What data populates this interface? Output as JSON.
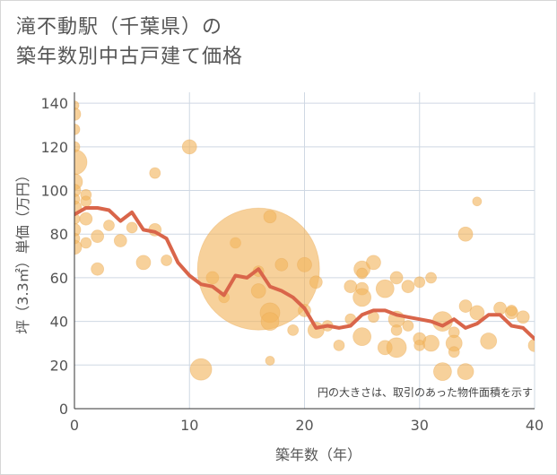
{
  "title_line1": "滝不動駅（千葉県）の",
  "title_line2": "築年数別中古戸建て価格",
  "chart_data": {
    "type": "scatter",
    "xlabel": "築年数（年）",
    "ylabel": "坪（3.3㎡）単価（万円）",
    "xlim": [
      0,
      40
    ],
    "ylim": [
      0,
      145
    ],
    "xticks": [
      0,
      10,
      20,
      30,
      40
    ],
    "yticks": [
      0,
      20,
      40,
      60,
      80,
      100,
      120,
      140
    ],
    "grid": true,
    "annotation": "円の大きさは、取引のあった物件面積を示す",
    "colors": {
      "bubble": "#f2b55e",
      "line": "#d9654a",
      "grid": "#cfd8e3"
    },
    "bubbles": [
      {
        "x": 0,
        "y": 139,
        "s": 5
      },
      {
        "x": 0,
        "y": 135,
        "s": 7
      },
      {
        "x": 0,
        "y": 128,
        "s": 6
      },
      {
        "x": 0,
        "y": 120,
        "s": 6
      },
      {
        "x": 0,
        "y": 113,
        "s": 14
      },
      {
        "x": 0,
        "y": 104,
        "s": 9
      },
      {
        "x": 0,
        "y": 100,
        "s": 7
      },
      {
        "x": 0,
        "y": 96,
        "s": 6
      },
      {
        "x": 0,
        "y": 92,
        "s": 8
      },
      {
        "x": 0,
        "y": 87,
        "s": 6
      },
      {
        "x": 0,
        "y": 82,
        "s": 7
      },
      {
        "x": 0,
        "y": 78,
        "s": 6
      },
      {
        "x": 0,
        "y": 74,
        "s": 8
      },
      {
        "x": 1,
        "y": 98,
        "s": 6
      },
      {
        "x": 1,
        "y": 95,
        "s": 6
      },
      {
        "x": 1,
        "y": 87,
        "s": 7
      },
      {
        "x": 1,
        "y": 76,
        "s": 6
      },
      {
        "x": 2,
        "y": 79,
        "s": 7
      },
      {
        "x": 2,
        "y": 64,
        "s": 7
      },
      {
        "x": 3,
        "y": 84,
        "s": 6
      },
      {
        "x": 4,
        "y": 77,
        "s": 7
      },
      {
        "x": 5,
        "y": 83,
        "s": 6
      },
      {
        "x": 6,
        "y": 67,
        "s": 8
      },
      {
        "x": 7,
        "y": 108,
        "s": 6
      },
      {
        "x": 7,
        "y": 82,
        "s": 7
      },
      {
        "x": 8,
        "y": 68,
        "s": 6
      },
      {
        "x": 10,
        "y": 120,
        "s": 8
      },
      {
        "x": 11,
        "y": 18,
        "s": 12
      },
      {
        "x": 12,
        "y": 60,
        "s": 7
      },
      {
        "x": 13,
        "y": 51,
        "s": 6
      },
      {
        "x": 14,
        "y": 76,
        "s": 6
      },
      {
        "x": 16,
        "y": 64,
        "s": 68
      },
      {
        "x": 16,
        "y": 63,
        "s": 6
      },
      {
        "x": 16,
        "y": 54,
        "s": 8
      },
      {
        "x": 17,
        "y": 88,
        "s": 7
      },
      {
        "x": 17,
        "y": 44,
        "s": 11
      },
      {
        "x": 17,
        "y": 40,
        "s": 10
      },
      {
        "x": 17,
        "y": 22,
        "s": 5
      },
      {
        "x": 18,
        "y": 66,
        "s": 7
      },
      {
        "x": 19,
        "y": 36,
        "s": 6
      },
      {
        "x": 20,
        "y": 66,
        "s": 8
      },
      {
        "x": 20,
        "y": 45,
        "s": 7
      },
      {
        "x": 21,
        "y": 58,
        "s": 7
      },
      {
        "x": 21,
        "y": 36,
        "s": 9
      },
      {
        "x": 22,
        "y": 38,
        "s": 6
      },
      {
        "x": 23,
        "y": 29,
        "s": 6
      },
      {
        "x": 24,
        "y": 56,
        "s": 7
      },
      {
        "x": 24,
        "y": 41,
        "s": 6
      },
      {
        "x": 25,
        "y": 64,
        "s": 9
      },
      {
        "x": 25,
        "y": 62,
        "s": 6
      },
      {
        "x": 25,
        "y": 55,
        "s": 7
      },
      {
        "x": 25,
        "y": 51,
        "s": 10
      },
      {
        "x": 25,
        "y": 33,
        "s": 10
      },
      {
        "x": 26,
        "y": 67,
        "s": 8
      },
      {
        "x": 26,
        "y": 42,
        "s": 6
      },
      {
        "x": 27,
        "y": 55,
        "s": 10
      },
      {
        "x": 27,
        "y": 28,
        "s": 8
      },
      {
        "x": 28,
        "y": 60,
        "s": 7
      },
      {
        "x": 28,
        "y": 41,
        "s": 9
      },
      {
        "x": 28,
        "y": 36,
        "s": 6
      },
      {
        "x": 28,
        "y": 28,
        "s": 11
      },
      {
        "x": 29,
        "y": 56,
        "s": 7
      },
      {
        "x": 29,
        "y": 38,
        "s": 6
      },
      {
        "x": 30,
        "y": 58,
        "s": 6
      },
      {
        "x": 30,
        "y": 32,
        "s": 7
      },
      {
        "x": 30,
        "y": 29,
        "s": 6
      },
      {
        "x": 31,
        "y": 60,
        "s": 6
      },
      {
        "x": 31,
        "y": 30,
        "s": 9
      },
      {
        "x": 32,
        "y": 40,
        "s": 11
      },
      {
        "x": 32,
        "y": 17,
        "s": 10
      },
      {
        "x": 33,
        "y": 35,
        "s": 6
      },
      {
        "x": 33,
        "y": 30,
        "s": 9
      },
      {
        "x": 33,
        "y": 26,
        "s": 6
      },
      {
        "x": 34,
        "y": 80,
        "s": 8
      },
      {
        "x": 34,
        "y": 47,
        "s": 7
      },
      {
        "x": 34,
        "y": 17,
        "s": 9
      },
      {
        "x": 35,
        "y": 95,
        "s": 5
      },
      {
        "x": 35,
        "y": 44,
        "s": 8
      },
      {
        "x": 36,
        "y": 31,
        "s": 9
      },
      {
        "x": 37,
        "y": 46,
        "s": 7
      },
      {
        "x": 38,
        "y": 44,
        "s": 7
      },
      {
        "x": 38,
        "y": 45,
        "s": 6
      },
      {
        "x": 39,
        "y": 42,
        "s": 7
      },
      {
        "x": 40,
        "y": 29,
        "s": 7
      }
    ],
    "trend": [
      {
        "x": 0,
        "y": 89
      },
      {
        "x": 1,
        "y": 92
      },
      {
        "x": 2,
        "y": 92
      },
      {
        "x": 3,
        "y": 91
      },
      {
        "x": 4,
        "y": 86
      },
      {
        "x": 5,
        "y": 90
      },
      {
        "x": 6,
        "y": 82
      },
      {
        "x": 7,
        "y": 81
      },
      {
        "x": 8,
        "y": 78
      },
      {
        "x": 9,
        "y": 67
      },
      {
        "x": 10,
        "y": 61
      },
      {
        "x": 11,
        "y": 57
      },
      {
        "x": 12,
        "y": 56
      },
      {
        "x": 13,
        "y": 52
      },
      {
        "x": 14,
        "y": 61
      },
      {
        "x": 15,
        "y": 60
      },
      {
        "x": 16,
        "y": 64
      },
      {
        "x": 17,
        "y": 56
      },
      {
        "x": 18,
        "y": 54
      },
      {
        "x": 19,
        "y": 51
      },
      {
        "x": 20,
        "y": 46
      },
      {
        "x": 21,
        "y": 37
      },
      {
        "x": 22,
        "y": 38
      },
      {
        "x": 23,
        "y": 37
      },
      {
        "x": 24,
        "y": 38
      },
      {
        "x": 25,
        "y": 43
      },
      {
        "x": 26,
        "y": 45
      },
      {
        "x": 27,
        "y": 45
      },
      {
        "x": 28,
        "y": 43
      },
      {
        "x": 29,
        "y": 42
      },
      {
        "x": 30,
        "y": 41
      },
      {
        "x": 31,
        "y": 40
      },
      {
        "x": 32,
        "y": 38
      },
      {
        "x": 33,
        "y": 41
      },
      {
        "x": 34,
        "y": 37
      },
      {
        "x": 35,
        "y": 39
      },
      {
        "x": 36,
        "y": 43
      },
      {
        "x": 37,
        "y": 43
      },
      {
        "x": 38,
        "y": 38
      },
      {
        "x": 39,
        "y": 37
      },
      {
        "x": 40,
        "y": 32
      }
    ]
  }
}
